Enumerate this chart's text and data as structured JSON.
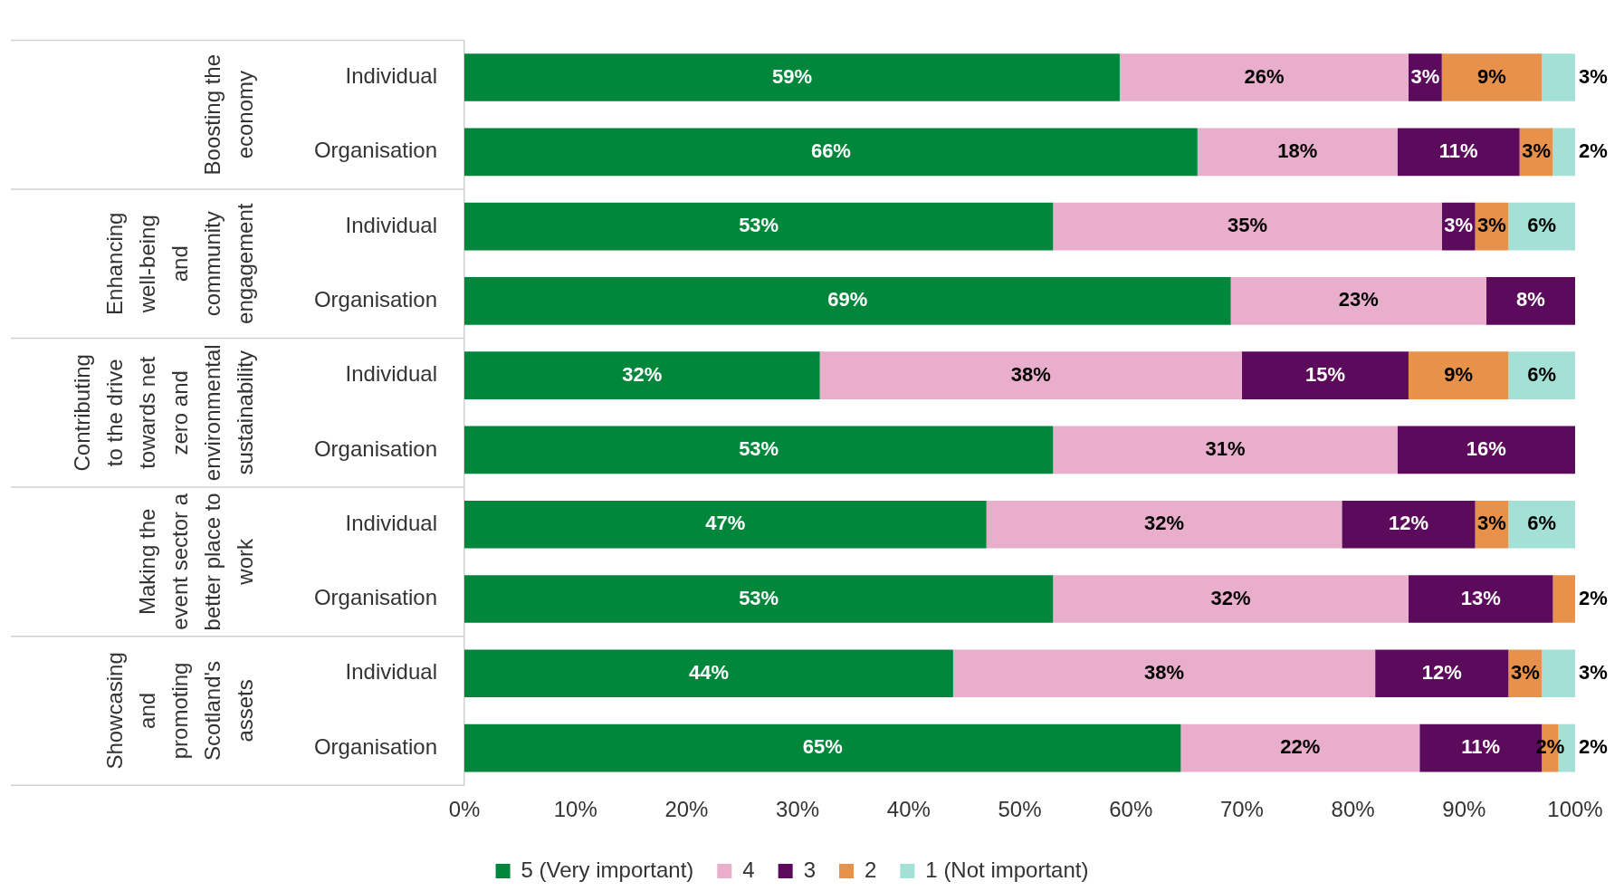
{
  "chart_data": {
    "type": "bar",
    "orientation": "horizontal",
    "stacked": true,
    "categories": [
      "Individual",
      "Organisation",
      "Individual",
      "Organisation",
      "Individual",
      "Organisation",
      "Individual",
      "Organisation",
      "Individual",
      "Organisation"
    ],
    "annotations": [
      "Boosting the economy",
      "Enhancing well-being and community engagement",
      "Contributing to the drive towards net zero and environmental sustainability",
      "Making the event sector a better place to work",
      "Showcasing and promoting Scotland's assets"
    ],
    "series": [
      {
        "name": "5 (Very important)",
        "color": "#00873c",
        "values": [
          59,
          66,
          53,
          69,
          32,
          53,
          47,
          53,
          44,
          64.5
        ],
        "value_labels": [
          "59%",
          "66%",
          "53%",
          "69%",
          "32%",
          "53%",
          "47%",
          "53%",
          "44%",
          "65%"
        ]
      },
      {
        "name": "4",
        "color": "#e8aecb",
        "values": [
          26,
          18,
          35,
          23,
          38,
          31,
          32,
          32,
          38,
          21.5
        ],
        "value_labels": [
          "26%",
          "18%",
          "35%",
          "23%",
          "38%",
          "31%",
          "32%",
          "32%",
          "38%",
          "22%"
        ]
      },
      {
        "name": "3",
        "color": "#5c0a5c",
        "values": [
          3,
          11,
          3,
          8,
          15,
          16,
          12,
          13,
          12,
          11
        ],
        "value_labels": [
          "3%",
          "11%",
          "3%",
          "8%",
          "15%",
          "16%",
          "12%",
          "13%",
          "12%",
          "11%"
        ]
      },
      {
        "name": "2",
        "color": "#e8914a",
        "values": [
          9,
          3,
          3,
          null,
          9,
          null,
          3,
          2,
          3,
          1.5
        ],
        "value_labels": [
          "9%",
          "3%",
          "3%",
          null,
          "9%",
          null,
          "3%",
          "2%",
          "3%",
          "2%"
        ]
      },
      {
        "name": "1 (Not important)",
        "color": "#a3e0d6",
        "values": [
          3,
          2,
          6,
          null,
          6,
          null,
          6,
          null,
          3,
          1.5
        ],
        "value_labels": [
          "3%",
          "2%",
          "6%",
          null,
          "6%",
          null,
          "6%",
          null,
          "3%",
          "2%"
        ]
      }
    ],
    "xlim": [
      0,
      100
    ],
    "xticks": [
      {
        "value": 0,
        "label": "0%"
      },
      {
        "value": 10,
        "label": "10%"
      },
      {
        "value": 20,
        "label": "20%"
      },
      {
        "value": 30,
        "label": "30%"
      },
      {
        "value": 40,
        "label": "40%"
      },
      {
        "value": 50,
        "label": "50%"
      },
      {
        "value": 60,
        "label": "60%"
      },
      {
        "value": 70,
        "label": "70%"
      },
      {
        "value": 80,
        "label": "80%"
      },
      {
        "value": 90,
        "label": "90%"
      },
      {
        "value": 100,
        "label": "100%"
      }
    ],
    "grid": false,
    "legend": "bottom"
  }
}
